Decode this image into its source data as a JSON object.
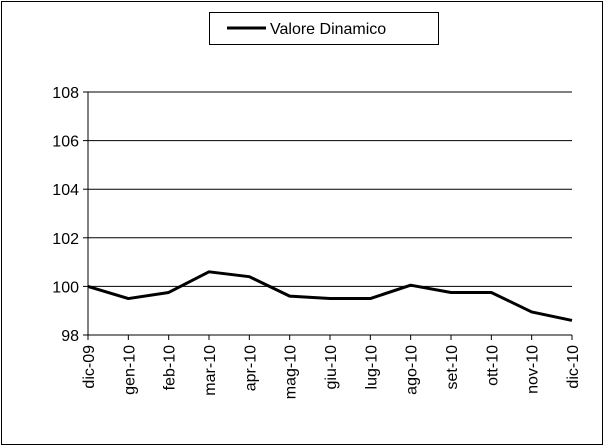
{
  "chart_data": {
    "type": "line",
    "categories": [
      "dic-09",
      "gen-10",
      "feb-10",
      "mar-10",
      "apr-10",
      "mag-10",
      "giu-10",
      "lug-10",
      "ago-10",
      "set-10",
      "ott-10",
      "nov-10",
      "dic-10"
    ],
    "series": [
      {
        "name": "Valore Dinamico",
        "color": "#000000",
        "values": [
          100.0,
          99.5,
          99.75,
          100.6,
          100.4,
          99.6,
          99.5,
          99.5,
          100.05,
          99.75,
          99.75,
          98.95,
          98.6
        ]
      }
    ],
    "ylim": [
      98,
      108
    ],
    "yticks": [
      98,
      100,
      102,
      104,
      106,
      108
    ],
    "grid": true,
    "legend": "top"
  }
}
